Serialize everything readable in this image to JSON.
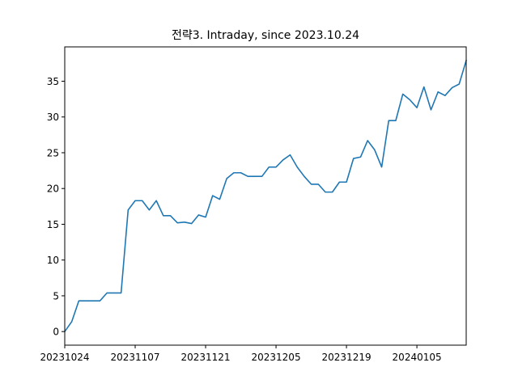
{
  "chart_data": {
    "type": "line",
    "title": "전략3. Intraday, since 2023.10.24",
    "xlabel": "",
    "ylabel": "",
    "grid": false,
    "legend": "none",
    "line_color": "#1f77b4",
    "xlim": [
      0,
      57
    ],
    "ylim": [
      -1.9,
      39.8
    ],
    "x_ticks": [
      {
        "index": 0,
        "label": "20231024"
      },
      {
        "index": 10,
        "label": "20231107"
      },
      {
        "index": 20,
        "label": "20231121"
      },
      {
        "index": 30,
        "label": "20231205"
      },
      {
        "index": 40,
        "label": "20231219"
      },
      {
        "index": 50,
        "label": "20240105"
      }
    ],
    "y_ticks": [
      {
        "value": 0,
        "label": "0"
      },
      {
        "value": 5,
        "label": "5"
      },
      {
        "value": 10,
        "label": "10"
      },
      {
        "value": 15,
        "label": "15"
      },
      {
        "value": 20,
        "label": "20"
      },
      {
        "value": 25,
        "label": "25"
      },
      {
        "value": 30,
        "label": "30"
      },
      {
        "value": 35,
        "label": "35"
      }
    ],
    "series": [
      {
        "values": [
          0.0,
          1.4,
          4.3,
          4.3,
          4.3,
          4.3,
          5.4,
          5.4,
          5.4,
          17.0,
          18.3,
          18.3,
          17.0,
          18.3,
          16.2,
          16.2,
          15.2,
          15.3,
          15.1,
          16.3,
          16.0,
          19.0,
          18.5,
          21.4,
          22.2,
          22.2,
          21.7,
          21.7,
          21.7,
          23.0,
          23.0,
          24.0,
          24.7,
          23.0,
          21.7,
          20.6,
          20.6,
          19.5,
          19.5,
          20.9,
          20.9,
          24.2,
          24.4,
          26.7,
          25.4,
          23.0,
          29.5,
          29.5,
          33.2,
          32.4,
          31.3,
          34.2,
          31.0,
          33.5,
          33.0,
          34.1,
          34.6,
          37.9
        ]
      }
    ]
  }
}
